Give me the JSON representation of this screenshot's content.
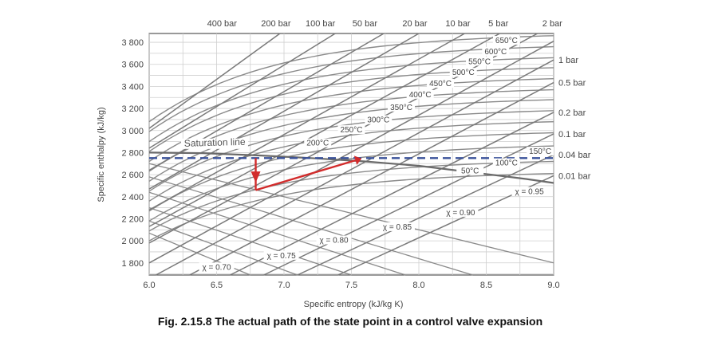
{
  "chart_data": {
    "type": "line",
    "title": "",
    "caption": "Fig. 2.15.8 The actual path of the state point in a control valve expansion",
    "xlabel": "Specific entropy (kJ/kg K)",
    "ylabel": "Specific enthalpy (kJ/kg)",
    "xlim": [
      6.0,
      9.0
    ],
    "ylim": [
      1690,
      3880
    ],
    "grid": true,
    "x_ticks": [
      {
        "value": 6.0,
        "label": "6.0"
      },
      {
        "value": 6.5,
        "label": "6.5"
      },
      {
        "value": 7.0,
        "label": "7.0"
      },
      {
        "value": 7.5,
        "label": "7.5"
      },
      {
        "value": 8.0,
        "label": "8.0"
      },
      {
        "value": 8.5,
        "label": "8.5"
      },
      {
        "value": 9.0,
        "label": "9.0"
      }
    ],
    "y_ticks": [
      {
        "value": 1800,
        "label": "1 800"
      },
      {
        "value": 2000,
        "label": "2 000"
      },
      {
        "value": 2200,
        "label": "2 200"
      },
      {
        "value": 2400,
        "label": "2 400"
      },
      {
        "value": 2600,
        "label": "2 600"
      },
      {
        "value": 2800,
        "label": "2 800"
      },
      {
        "value": 3000,
        "label": "3 000"
      },
      {
        "value": 3200,
        "label": "3 200"
      },
      {
        "value": 3400,
        "label": "3 400"
      },
      {
        "value": 3600,
        "label": "3 600"
      },
      {
        "value": 3800,
        "label": "3 800"
      }
    ],
    "isobars": [
      {
        "label": "400 bar",
        "label_x": 6.54,
        "s0": 6.0,
        "h0": 3020,
        "s1": 6.97,
        "h1": 3880,
        "label_pos": "top"
      },
      {
        "label": "200 bar",
        "label_x": 6.94,
        "s0": 6.0,
        "h0": 2840,
        "s1": 7.38,
        "h1": 3880,
        "label_pos": "top"
      },
      {
        "label": "100 bar",
        "label_x": 7.27,
        "s0": 6.0,
        "h0": 2640,
        "s1": 7.74,
        "h1": 3880,
        "label_pos": "top"
      },
      {
        "label": "50 bar",
        "label_x": 7.6,
        "s0": 6.0,
        "h0": 2470,
        "s1": 8.0,
        "h1": 3880,
        "label_pos": "top"
      },
      {
        "label": "20 bar",
        "label_x": 7.97,
        "s0": 6.0,
        "h0": 2280,
        "s1": 8.34,
        "h1": 3880,
        "label_pos": "top"
      },
      {
        "label": "10 bar",
        "label_x": 8.29,
        "s0": 6.0,
        "h0": 2130,
        "s1": 8.6,
        "h1": 3880,
        "label_pos": "top"
      },
      {
        "label": "5 bar",
        "label_x": 8.59,
        "s0": 6.0,
        "h0": 1980,
        "s1": 8.88,
        "h1": 3880,
        "label_pos": "top"
      },
      {
        "label": "2 bar",
        "label_x": 8.99,
        "s0": 6.0,
        "h0": 1800,
        "s1": 9.0,
        "h1": 3810,
        "label_pos": "top"
      },
      {
        "label": "1 bar",
        "label_h": 3640,
        "s0": 6.05,
        "h0": 1690,
        "s1": 9.0,
        "h1": 3640,
        "label_pos": "right"
      },
      {
        "label": "0.5 bar",
        "label_h": 3435,
        "s0": 6.3,
        "h0": 1690,
        "s1": 9.0,
        "h1": 3435,
        "label_pos": "right"
      },
      {
        "label": "0.2 bar",
        "label_h": 3165,
        "s0": 6.6,
        "h0": 1690,
        "s1": 9.0,
        "h1": 3165,
        "label_pos": "right"
      },
      {
        "label": "0.1 bar",
        "label_h": 2970,
        "s0": 6.85,
        "h0": 1690,
        "s1": 9.0,
        "h1": 2970,
        "label_pos": "right"
      },
      {
        "label": "0.04 bar",
        "label_h": 2780,
        "s0": 7.1,
        "h0": 1690,
        "s1": 9.0,
        "h1": 2780,
        "label_pos": "right"
      },
      {
        "label": "0.01 bar",
        "label_h": 2590,
        "s0": 7.4,
        "h0": 1690,
        "s1": 9.0,
        "h1": 2590,
        "label_pos": "right"
      }
    ],
    "isotherms": [
      {
        "label": "650°C",
        "s_start": 6.0,
        "h_start": 3080,
        "h_end": 3860,
        "label_s": 8.65,
        "label_h": 3800
      },
      {
        "label": "600°C",
        "s_start": 6.0,
        "h_start": 2990,
        "h_end": 3760,
        "label_s": 8.57,
        "label_h": 3700
      },
      {
        "label": "550°C",
        "s_start": 6.0,
        "h_start": 2900,
        "h_end": 3660,
        "label_s": 8.45,
        "label_h": 3610
      },
      {
        "label": "500°C",
        "s_start": 6.0,
        "h_start": 2810,
        "h_end": 3570,
        "label_s": 8.33,
        "label_h": 3510
      },
      {
        "label": "450°C",
        "s_start": 6.0,
        "h_start": 2720,
        "h_end": 3470,
        "label_s": 8.16,
        "label_h": 3410
      },
      {
        "label": "400°C",
        "s_start": 6.0,
        "h_start": 2630,
        "h_end": 3370,
        "label_s": 8.01,
        "label_h": 3310
      },
      {
        "label": "350°C",
        "s_start": 6.0,
        "h_start": 2540,
        "h_end": 3280,
        "label_s": 7.87,
        "label_h": 3195
      },
      {
        "label": "300°C",
        "s_start": 6.0,
        "h_start": 2450,
        "h_end": 3180,
        "label_s": 7.7,
        "label_h": 3080
      },
      {
        "label": "250°C",
        "s_start": 6.0,
        "h_start": 2360,
        "h_end": 3080,
        "label_s": 7.5,
        "label_h": 2990
      },
      {
        "label": "200°C",
        "s_start": 6.0,
        "h_start": 2270,
        "h_end": 2980,
        "label_s": 7.25,
        "label_h": 2870
      },
      {
        "label": "150°C",
        "s_start": 6.0,
        "h_start": 2180,
        "h_end": 2860,
        "label_s": 8.9,
        "label_h": 2795
      },
      {
        "label": "100°C",
        "s_start": 6.0,
        "h_start": 2090,
        "h_end": 2720,
        "label_s": 8.65,
        "label_h": 2690
      },
      {
        "label": "50°C",
        "s_start": 6.0,
        "h_start": 2000,
        "h_end": 2610,
        "label_s": 8.38,
        "label_h": 2620
      }
    ],
    "saturation_line": {
      "label": "Saturation line",
      "points": [
        [
          6.0,
          2800
        ],
        [
          6.4,
          2795
        ],
        [
          6.8,
          2775
        ],
        [
          7.2,
          2750
        ],
        [
          7.6,
          2720
        ],
        [
          8.0,
          2680
        ],
        [
          8.4,
          2620
        ],
        [
          8.8,
          2560
        ],
        [
          9.0,
          2525
        ]
      ]
    },
    "quality_lines": [
      {
        "label": "χ = 0.70",
        "s0": 6.0,
        "h0": 2070,
        "s1": 6.75,
        "h1": 1690,
        "label_s": 6.5,
        "label_h": 1745
      },
      {
        "label": "χ = 0.75",
        "s0": 6.0,
        "h0": 2180,
        "s1": 7.1,
        "h1": 1690,
        "label_s": 6.98,
        "label_h": 1850
      },
      {
        "label": "χ = 0.80",
        "s0": 6.0,
        "h0": 2300,
        "s1": 7.5,
        "h1": 1690,
        "label_s": 7.37,
        "label_h": 1990
      },
      {
        "label": "χ = 0.85",
        "s0": 6.0,
        "h0": 2440,
        "s1": 7.9,
        "h1": 1690,
        "label_s": 7.84,
        "label_h": 2110
      },
      {
        "label": "χ = 0.90",
        "s0": 6.0,
        "h0": 2580,
        "s1": 8.4,
        "h1": 1690,
        "label_s": 8.31,
        "label_h": 2240
      },
      {
        "label": "χ = 0.95",
        "s0": 6.0,
        "h0": 2700,
        "s1": 9.0,
        "h1": 1800,
        "label_s": 8.82,
        "label_h": 2430
      }
    ],
    "constant_enthalpy_line": {
      "h": 2750,
      "style": "dashed",
      "color": "#3a529a"
    },
    "actual_path": {
      "color": "#d22b2b",
      "drop_start": [
        6.79,
        2750
      ],
      "drop_end": [
        6.79,
        2600
      ],
      "recovery_start": [
        6.79,
        2460
      ],
      "recovery_end": [
        7.53,
        2730
      ]
    }
  }
}
